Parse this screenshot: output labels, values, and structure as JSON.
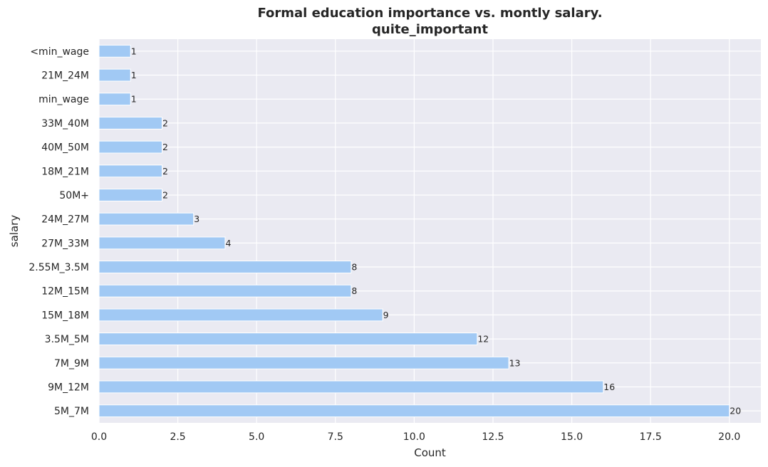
{
  "chart_data": {
    "type": "bar",
    "orientation": "horizontal",
    "title": "Formal education importance vs. montly salary.",
    "subtitle": "quite_important",
    "xlabel": "Count",
    "ylabel": "salary",
    "xlim": [
      0,
      21
    ],
    "xticks": [
      0,
      2.5,
      5,
      7.5,
      10,
      12.5,
      15,
      17.5,
      20
    ],
    "xtick_labels": [
      "0.0",
      "2.5",
      "5.0",
      "7.5",
      "10.0",
      "12.5",
      "15.0",
      "17.5",
      "20.0"
    ],
    "categories": [
      "<min_wage",
      "21M_24M",
      "min_wage",
      "33M_40M",
      "40M_50M",
      "18M_21M",
      "50M+",
      "24M_27M",
      "27M_33M",
      "2.55M_3.5M",
      "12M_15M",
      "15M_18M",
      "3.5M_5M",
      "7M_9M",
      "9M_12M",
      "5M_7M"
    ],
    "values": [
      1,
      1,
      1,
      2,
      2,
      2,
      2,
      3,
      4,
      8,
      8,
      9,
      12,
      13,
      16,
      20
    ],
    "data_labels": [
      "1",
      "1",
      "1",
      "2",
      "2",
      "2",
      "2",
      "3",
      "4",
      "8",
      "8",
      "9",
      "12",
      "13",
      "16",
      "20"
    ],
    "grid": true,
    "bar_color": "#a1c9f4",
    "plot_background": "#eaeaf2",
    "grid_color": "#ffffff"
  }
}
